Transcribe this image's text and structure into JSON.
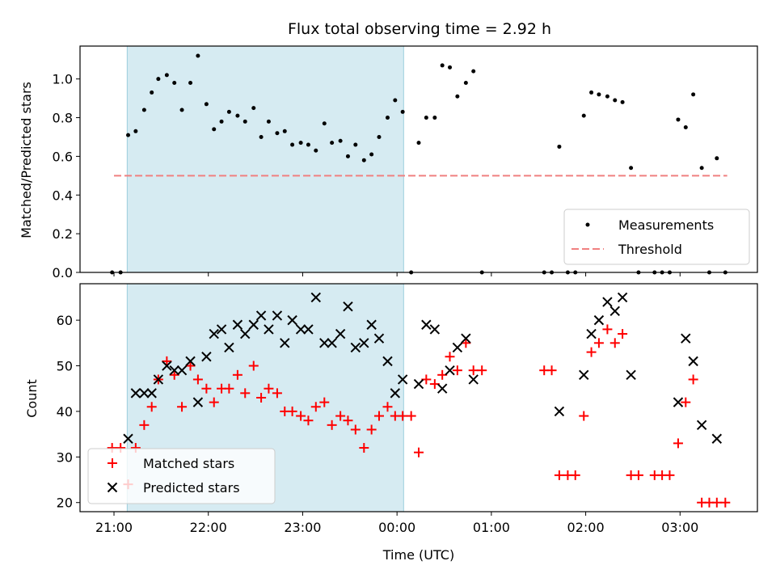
{
  "chart_data": [
    {
      "type": "scatter",
      "title": "Flux total observing time = 2.92 h",
      "xlabel": "",
      "ylabel": "Matched/Predicted stars",
      "ylim": [
        0,
        1.17
      ],
      "yticks": [
        "0.0",
        "0.2",
        "0.4",
        "0.6",
        "0.8",
        "1.0"
      ],
      "xlim": [
        -0.36,
        6.82
      ],
      "shaded_span": [
        0.14,
        3.07
      ],
      "shade_color": "#add8e6",
      "legend_position": "lower-right",
      "threshold": {
        "name": "Threshold",
        "value": 0.5,
        "x_range": [
          0.0,
          6.5
        ],
        "color": "#f08080"
      },
      "series": [
        {
          "name": "Measurements",
          "color": "#000000",
          "points": [
            [
              -0.02,
              0.0
            ],
            [
              0.07,
              0.0
            ],
            [
              0.15,
              0.71
            ],
            [
              0.23,
              0.73
            ],
            [
              0.32,
              0.84
            ],
            [
              0.4,
              0.93
            ],
            [
              0.47,
              1.0
            ],
            [
              0.56,
              1.02
            ],
            [
              0.64,
              0.98
            ],
            [
              0.72,
              0.84
            ],
            [
              0.81,
              0.98
            ],
            [
              0.89,
              1.12
            ],
            [
              0.98,
              0.87
            ],
            [
              1.06,
              0.74
            ],
            [
              1.14,
              0.78
            ],
            [
              1.22,
              0.83
            ],
            [
              1.31,
              0.81
            ],
            [
              1.39,
              0.78
            ],
            [
              1.48,
              0.85
            ],
            [
              1.56,
              0.7
            ],
            [
              1.64,
              0.78
            ],
            [
              1.73,
              0.72
            ],
            [
              1.81,
              0.73
            ],
            [
              1.89,
              0.66
            ],
            [
              1.98,
              0.67
            ],
            [
              2.06,
              0.66
            ],
            [
              2.14,
              0.63
            ],
            [
              2.23,
              0.77
            ],
            [
              2.31,
              0.67
            ],
            [
              2.4,
              0.68
            ],
            [
              2.48,
              0.6
            ],
            [
              2.56,
              0.66
            ],
            [
              2.65,
              0.58
            ],
            [
              2.73,
              0.61
            ],
            [
              2.81,
              0.7
            ],
            [
              2.9,
              0.8
            ],
            [
              2.98,
              0.89
            ],
            [
              3.06,
              0.83
            ],
            [
              3.15,
              0.0
            ],
            [
              3.23,
              0.67
            ],
            [
              3.31,
              0.8
            ],
            [
              3.4,
              0.8
            ],
            [
              3.48,
              1.07
            ],
            [
              3.56,
              1.06
            ],
            [
              3.64,
              0.91
            ],
            [
              3.73,
              0.98
            ],
            [
              3.81,
              1.04
            ],
            [
              3.9,
              0.0
            ],
            [
              4.56,
              0.0
            ],
            [
              4.64,
              0.0
            ],
            [
              4.72,
              0.65
            ],
            [
              4.81,
              0.0
            ],
            [
              4.89,
              0.0
            ],
            [
              4.98,
              0.81
            ],
            [
              5.06,
              0.93
            ],
            [
              5.14,
              0.92
            ],
            [
              5.23,
              0.91
            ],
            [
              5.31,
              0.89
            ],
            [
              5.39,
              0.88
            ],
            [
              5.48,
              0.54
            ],
            [
              5.56,
              0.0
            ],
            [
              5.73,
              0.0
            ],
            [
              5.81,
              0.0
            ],
            [
              5.89,
              0.0
            ],
            [
              5.98,
              0.79
            ],
            [
              6.06,
              0.75
            ],
            [
              6.14,
              0.92
            ],
            [
              6.23,
              0.54
            ],
            [
              6.31,
              0.0
            ],
            [
              6.39,
              0.59
            ],
            [
              6.48,
              0.0
            ]
          ]
        }
      ]
    },
    {
      "type": "scatter",
      "xlabel": "Time (UTC)",
      "ylabel": "Count",
      "ylim": [
        18,
        68
      ],
      "yticks": [
        "20",
        "30",
        "40",
        "50",
        "60"
      ],
      "xlim": [
        -0.36,
        6.82
      ],
      "xticks": [
        "21:00",
        "22:00",
        "23:00",
        "00:00",
        "01:00",
        "02:00",
        "03:00"
      ],
      "shaded_span": [
        0.14,
        3.07
      ],
      "shade_color": "#add8e6",
      "legend_position": "lower-left",
      "series": [
        {
          "name": "Matched stars",
          "marker": "plus",
          "color": "#ff0000",
          "points": [
            [
              -0.02,
              32
            ],
            [
              0.07,
              32
            ],
            [
              0.15,
              24
            ],
            [
              0.23,
              32
            ],
            [
              0.32,
              37
            ],
            [
              0.4,
              41
            ],
            [
              0.47,
              47
            ],
            [
              0.56,
              51
            ],
            [
              0.64,
              48
            ],
            [
              0.72,
              41
            ],
            [
              0.81,
              50
            ],
            [
              0.89,
              47
            ],
            [
              0.98,
              45
            ],
            [
              1.06,
              42
            ],
            [
              1.14,
              45
            ],
            [
              1.22,
              45
            ],
            [
              1.31,
              48
            ],
            [
              1.39,
              44
            ],
            [
              1.48,
              50
            ],
            [
              1.56,
              43
            ],
            [
              1.64,
              45
            ],
            [
              1.73,
              44
            ],
            [
              1.81,
              40
            ],
            [
              1.89,
              40
            ],
            [
              1.98,
              39
            ],
            [
              2.06,
              38
            ],
            [
              2.14,
              41
            ],
            [
              2.23,
              42
            ],
            [
              2.31,
              37
            ],
            [
              2.4,
              39
            ],
            [
              2.48,
              38
            ],
            [
              2.56,
              36
            ],
            [
              2.65,
              32
            ],
            [
              2.73,
              36
            ],
            [
              2.81,
              39
            ],
            [
              2.9,
              41
            ],
            [
              2.98,
              39
            ],
            [
              3.06,
              39
            ],
            [
              3.15,
              39
            ],
            [
              3.23,
              31
            ],
            [
              3.31,
              47
            ],
            [
              3.4,
              46
            ],
            [
              3.48,
              48
            ],
            [
              3.56,
              52
            ],
            [
              3.64,
              49
            ],
            [
              3.73,
              55
            ],
            [
              3.81,
              49
            ],
            [
              3.9,
              49
            ],
            [
              4.56,
              49
            ],
            [
              4.64,
              49
            ],
            [
              4.72,
              26
            ],
            [
              4.81,
              26
            ],
            [
              4.89,
              26
            ],
            [
              4.98,
              39
            ],
            [
              5.06,
              53
            ],
            [
              5.14,
              55
            ],
            [
              5.23,
              58
            ],
            [
              5.31,
              55
            ],
            [
              5.39,
              57
            ],
            [
              5.48,
              26
            ],
            [
              5.56,
              26
            ],
            [
              5.73,
              26
            ],
            [
              5.81,
              26
            ],
            [
              5.89,
              26
            ],
            [
              5.98,
              33
            ],
            [
              6.06,
              42
            ],
            [
              6.14,
              47
            ],
            [
              6.23,
              20
            ],
            [
              6.31,
              20
            ],
            [
              6.39,
              20
            ],
            [
              6.48,
              20
            ]
          ]
        },
        {
          "name": "Predicted stars",
          "marker": "x",
          "color": "#000000",
          "points": [
            [
              0.15,
              34
            ],
            [
              0.23,
              44
            ],
            [
              0.32,
              44
            ],
            [
              0.4,
              44
            ],
            [
              0.47,
              47
            ],
            [
              0.56,
              50
            ],
            [
              0.64,
              49
            ],
            [
              0.72,
              49
            ],
            [
              0.81,
              51
            ],
            [
              0.89,
              42
            ],
            [
              0.98,
              52
            ],
            [
              1.06,
              57
            ],
            [
              1.14,
              58
            ],
            [
              1.22,
              54
            ],
            [
              1.31,
              59
            ],
            [
              1.39,
              57
            ],
            [
              1.48,
              59
            ],
            [
              1.56,
              61
            ],
            [
              1.64,
              58
            ],
            [
              1.73,
              61
            ],
            [
              1.81,
              55
            ],
            [
              1.89,
              60
            ],
            [
              1.98,
              58
            ],
            [
              2.06,
              58
            ],
            [
              2.14,
              65
            ],
            [
              2.23,
              55
            ],
            [
              2.31,
              55
            ],
            [
              2.4,
              57
            ],
            [
              2.48,
              63
            ],
            [
              2.56,
              54
            ],
            [
              2.65,
              55
            ],
            [
              2.73,
              59
            ],
            [
              2.81,
              56
            ],
            [
              2.9,
              51
            ],
            [
              2.98,
              44
            ],
            [
              3.06,
              47
            ],
            [
              3.23,
              46
            ],
            [
              3.31,
              59
            ],
            [
              3.4,
              58
            ],
            [
              3.48,
              45
            ],
            [
              3.56,
              49
            ],
            [
              3.64,
              54
            ],
            [
              3.73,
              56
            ],
            [
              3.81,
              47
            ],
            [
              4.72,
              40
            ],
            [
              4.98,
              48
            ],
            [
              5.06,
              57
            ],
            [
              5.14,
              60
            ],
            [
              5.23,
              64
            ],
            [
              5.31,
              62
            ],
            [
              5.39,
              65
            ],
            [
              5.48,
              48
            ],
            [
              5.98,
              42
            ],
            [
              6.06,
              56
            ],
            [
              6.14,
              51
            ],
            [
              6.23,
              37
            ],
            [
              6.39,
              34
            ]
          ]
        }
      ]
    }
  ]
}
